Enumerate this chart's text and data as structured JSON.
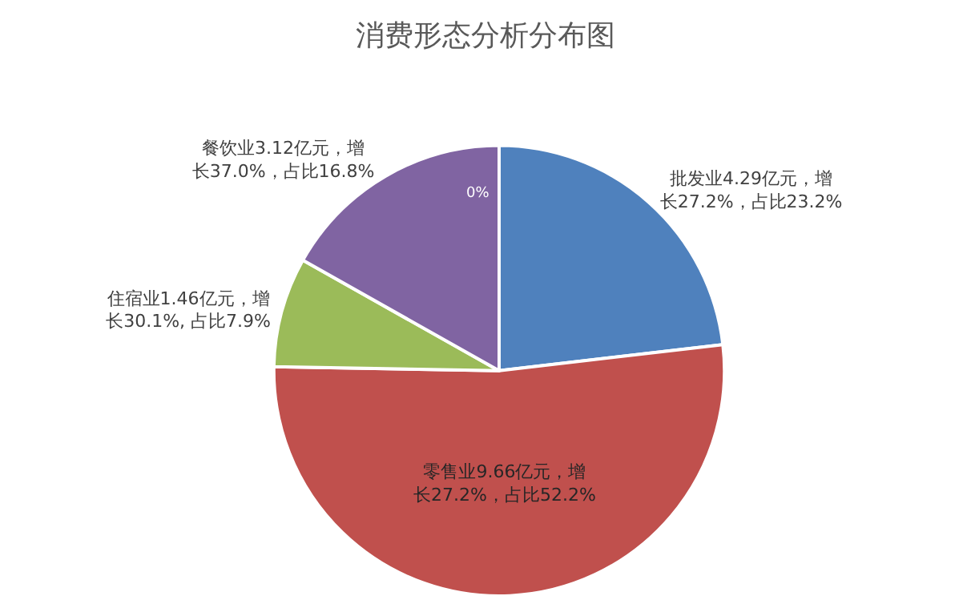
{
  "chart_data": {
    "type": "pie",
    "title": "消费形态分析分布图",
    "categories": [
      "批发业",
      "零售业",
      "住宿业",
      "餐饮业"
    ],
    "values": [
      4.29,
      9.66,
      1.46,
      3.12
    ],
    "colors": [
      "#4f81bd",
      "#c0504d",
      "#9bbb59",
      "#8064a2"
    ],
    "value_labels": [
      "4.29亿元，增长27.2%，占比23.2%",
      "9.66亿元，增长27.2%，占比52.2%",
      "1.46亿元，增长30.1%, 占比7.9%",
      "3.12亿元，增长37.0%，占比16.8%"
    ],
    "annotations": [
      "0%"
    ],
    "legend": false
  }
}
